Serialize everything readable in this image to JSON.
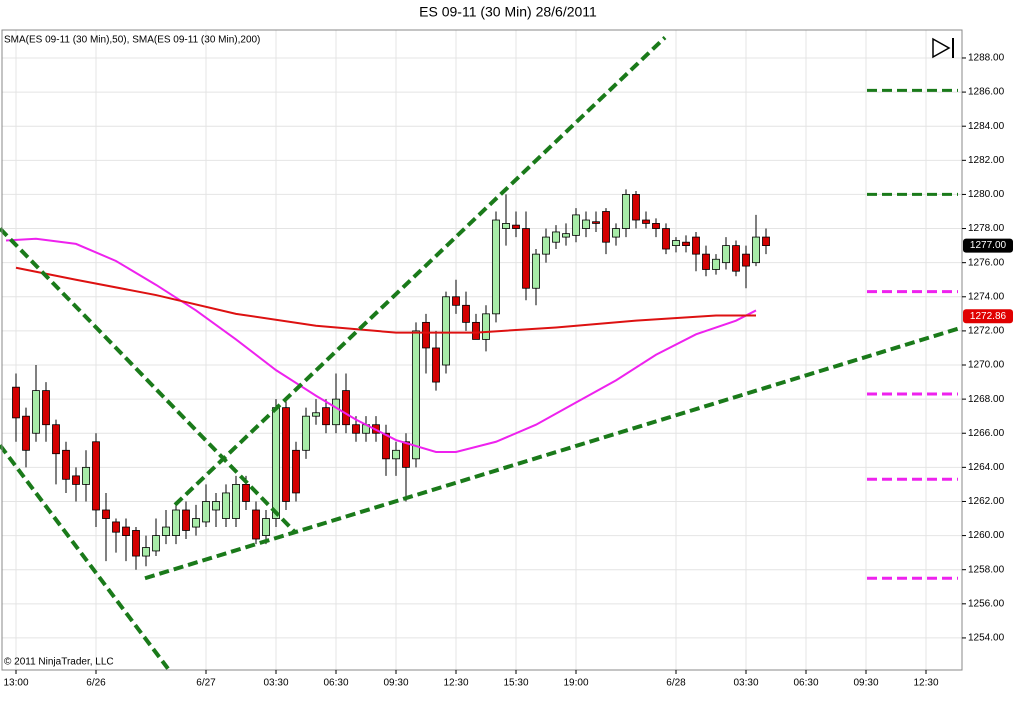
{
  "chart_data": {
    "type": "candlestick",
    "title": "ES 09-11 (30 Min)  28/6/2011",
    "legend": "SMA(ES 09-11 (30 Min),50), SMA(ES 09-11 (30 Min),200)",
    "copyright": "© 2011 NinjaTrader, LLC",
    "up_color": "#a8eca8",
    "down_color": "#d40000",
    "grid": true,
    "open": [
      1268.7,
      1267,
      1266,
      1268.5,
      1266.5,
      1265,
      1263.5,
      1263,
      1265.5,
      1261.5,
      1260.8,
      1260.5,
      1260.3,
      1258.8,
      1259.1,
      1260,
      1260,
      1261.5,
      1260.5,
      1260.8,
      1261.5,
      1261,
      1261,
      1263,
      1261.5,
      1260,
      1261,
      1267.5,
      1265,
      1265,
      1267,
      1267.5,
      1266.5,
      1268.5,
      1266.5,
      1266,
      1266.5,
      1266,
      1264.5,
      1265.5,
      1264.5,
      1272.5,
      1271,
      1270,
      1274,
      1273.5,
      1272.5,
      1271.5,
      1273,
      1278,
      1278.2,
      1278,
      1274.5,
      1276.5,
      1277.2,
      1277.5,
      1277.6,
      1278,
      1278.4,
      1279,
      1277.5,
      1278,
      1280,
      1278.5,
      1278.3,
      1278,
      1277,
      1277.2,
      1277.5,
      1276.5,
      1275.6,
      1276,
      1277,
      1276.5,
      1276,
      1277.5
    ],
    "high": [
      1269.5,
      1267.5,
      1270,
      1269,
      1266.8,
      1265.5,
      1264,
      1265,
      1266,
      1262.5,
      1261,
      1261,
      1260.5,
      1260,
      1261,
      1261.5,
      1262,
      1262,
      1261.8,
      1263,
      1262.5,
      1263,
      1263.5,
      1263.5,
      1262,
      1261.5,
      1268,
      1268,
      1265.5,
      1267.5,
      1268,
      1268,
      1269.5,
      1269.5,
      1267,
      1267,
      1267,
      1266.5,
      1265.5,
      1266,
      1272.5,
      1273,
      1272,
      1274.3,
      1275,
      1274.3,
      1273,
      1273.5,
      1279,
      1280,
      1279,
      1279,
      1276.8,
      1278,
      1278.2,
      1278.3,
      1279.2,
      1279,
      1279,
      1279.2,
      1278.3,
      1280.3,
      1280.2,
      1279,
      1278.6,
      1278.3,
      1277.5,
      1277.6,
      1277.8,
      1277,
      1276.5,
      1277.5,
      1277.3,
      1277,
      1278.8,
      1278
    ],
    "low": [
      1265.5,
      1264,
      1265.5,
      1265.5,
      1263,
      1262.5,
      1262,
      1262,
      1260.5,
      1258.5,
      1259,
      1258.5,
      1258,
      1258.2,
      1258.8,
      1259.5,
      1259.5,
      1259.8,
      1260,
      1260.5,
      1260.5,
      1260.5,
      1260.5,
      1261.5,
      1259.5,
      1259.5,
      1260.5,
      1261.5,
      1262,
      1264.5,
      1266.5,
      1266,
      1266,
      1266,
      1265.5,
      1265.5,
      1265.5,
      1263.5,
      1263.5,
      1262,
      1264,
      1269.5,
      1268.5,
      1269.5,
      1273,
      1272,
      1271.5,
      1270.8,
      1272.5,
      1277,
      1277.5,
      1273.8,
      1273.5,
      1276,
      1276.8,
      1277,
      1277.2,
      1277.5,
      1277.8,
      1276.5,
      1277,
      1277.5,
      1278,
      1278,
      1277.5,
      1276.5,
      1276.6,
      1276.6,
      1275.5,
      1275.2,
      1275.3,
      1275.6,
      1275.2,
      1274.5,
      1275.8,
      1276.5
    ],
    "close": [
      1266.9,
      1265,
      1268.5,
      1266.5,
      1264.8,
      1263.3,
      1263,
      1264,
      1261.5,
      1261,
      1260.2,
      1260,
      1258.8,
      1259.3,
      1260,
      1260.5,
      1261.5,
      1260.3,
      1261,
      1262,
      1262,
      1262.5,
      1263,
      1262,
      1259.8,
      1261,
      1267.5,
      1262,
      1262.5,
      1267,
      1267.2,
      1266.5,
      1268,
      1266.5,
      1266,
      1266.5,
      1266,
      1264.5,
      1265,
      1264,
      1272,
      1271,
      1269,
      1274,
      1273.5,
      1272.5,
      1271.5,
      1273,
      1278.5,
      1278.3,
      1278,
      1274.5,
      1276.5,
      1277.5,
      1277.8,
      1277.7,
      1278.8,
      1278.5,
      1278.3,
      1277.2,
      1278,
      1280,
      1278.5,
      1278.3,
      1278,
      1276.8,
      1277.3,
      1277,
      1276.5,
      1275.6,
      1276.2,
      1277,
      1275.5,
      1275.8,
      1277.5,
      1277
    ],
    "series": [
      {
        "color": "#ee22ee",
        "x": [
          -1,
          2,
          6,
          10,
          14,
          18,
          22,
          26,
          30,
          34,
          38,
          42,
          44,
          48,
          52,
          56,
          60,
          64,
          68,
          72,
          74
        ],
        "values": [
          1277.3,
          1277.4,
          1277.1,
          1276.1,
          1274.7,
          1273.2,
          1271.5,
          1269.7,
          1268.2,
          1266.8,
          1265.6,
          1264.9,
          1264.9,
          1265.5,
          1266.5,
          1267.8,
          1269.1,
          1270.6,
          1271.8,
          1272.6,
          1273.2
        ]
      },
      {
        "color": "#dd1111",
        "x": [
          0,
          6,
          14,
          22,
          30,
          38,
          46,
          54,
          62,
          70,
          74
        ],
        "values": [
          1275.7,
          1275,
          1274.1,
          1273,
          1272.3,
          1271.9,
          1271.9,
          1272.2,
          1272.6,
          1272.9,
          1272.9
        ]
      }
    ],
    "trendlines": [
      {
        "color": "#1a7a1a",
        "x": [
          -1.6,
          27.9
        ],
        "y": [
          1278,
          1260.2
        ]
      },
      {
        "color": "#1a7a1a",
        "x": [
          -1.6,
          15.2
        ],
        "y": [
          1265.3,
          1252.2
        ]
      },
      {
        "color": "#1a7a1a",
        "x": [
          15.9,
          64.9
        ],
        "y": [
          1261.8,
          1289.2
        ]
      },
      {
        "color": "#1a7a1a",
        "x": [
          12.9,
          94.6
        ],
        "y": [
          1257.5,
          1272.2
        ]
      }
    ],
    "levels": [
      {
        "color": "#1a7a1a",
        "value": 1286.1
      },
      {
        "color": "#1a7a1a",
        "value": 1280
      },
      {
        "color": "#ee22ee",
        "value": 1274.3
      },
      {
        "color": "#ee22ee",
        "value": 1268.3
      },
      {
        "color": "#ee22ee",
        "value": 1263.3
      },
      {
        "color": "#ee22ee",
        "value": 1257.5
      }
    ],
    "price_labels": [
      {
        "value": 1277,
        "label": "1277.00",
        "color": "#000000"
      },
      {
        "value": 1272.86,
        "label": "1272.86",
        "color": "#e00000"
      }
    ],
    "xlim": [
      -1.4,
      94.6
    ],
    "ylim": [
      1252.12,
      1289.64
    ],
    "xticks": [
      {
        "value": 0,
        "label": "13:00"
      },
      {
        "value": 8,
        "label": "6/26"
      },
      {
        "value": 19,
        "label": "6/27"
      },
      {
        "value": 26,
        "label": "03:30"
      },
      {
        "value": 32,
        "label": "06:30"
      },
      {
        "value": 38,
        "label": "09:30"
      },
      {
        "value": 44,
        "label": "12:30"
      },
      {
        "value": 50,
        "label": "15:30"
      },
      {
        "value": 56,
        "label": "19:00"
      },
      {
        "value": 66,
        "label": "6/28"
      },
      {
        "value": 73,
        "label": "03:30"
      },
      {
        "value": 79,
        "label": "06:30"
      },
      {
        "value": 85,
        "label": "09:30"
      },
      {
        "value": 91,
        "label": "12:30"
      }
    ],
    "yticks": [
      {
        "value": 1254,
        "label": "1254.00"
      },
      {
        "value": 1256,
        "label": "1256.00"
      },
      {
        "value": 1258,
        "label": "1258.00"
      },
      {
        "value": 1260,
        "label": "1260.00"
      },
      {
        "value": 1262,
        "label": "1262.00"
      },
      {
        "value": 1264,
        "label": "1264.00"
      },
      {
        "value": 1266,
        "label": "1266.00"
      },
      {
        "value": 1268,
        "label": "1268.00"
      },
      {
        "value": 1270,
        "label": "1270.00"
      },
      {
        "value": 1272,
        "label": "1272.00"
      },
      {
        "value": 1274,
        "label": "1274.00"
      },
      {
        "value": 1276,
        "label": "1276.00"
      },
      {
        "value": 1278,
        "label": "1278.00"
      },
      {
        "value": 1280,
        "label": "1280.00"
      },
      {
        "value": 1282,
        "label": "1282.00"
      },
      {
        "value": 1284,
        "label": "1284.00"
      },
      {
        "value": 1286,
        "label": "1286.00"
      },
      {
        "value": 1288,
        "label": "1288.00"
      }
    ]
  }
}
